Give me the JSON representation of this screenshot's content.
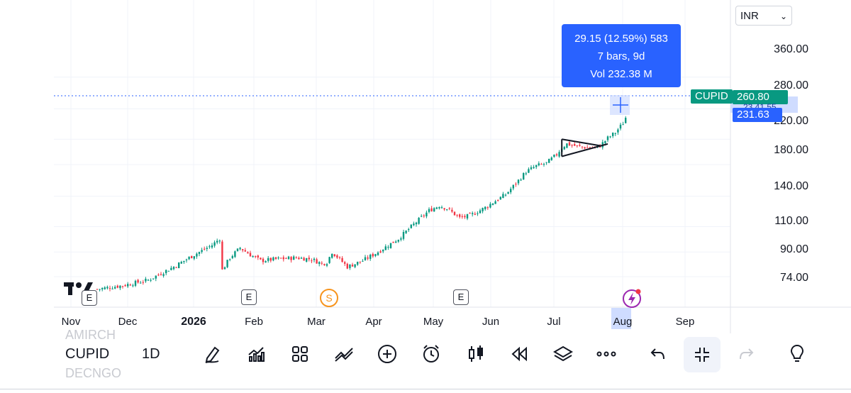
{
  "currency": {
    "value": "INR"
  },
  "y_axis": {
    "labels": [
      "360.00",
      "280.00",
      "220.00",
      "180.00",
      "140.00",
      "110.00",
      "90.00",
      "74.00"
    ]
  },
  "x_axis": {
    "labels": [
      "Nov",
      "Dec",
      "2026",
      "Feb",
      "Mar",
      "Apr",
      "May",
      "Jun",
      "Jul",
      "Aug",
      "Sep"
    ]
  },
  "measure_tooltip": {
    "line1": "29.15 (12.59%) 583",
    "line2": "7 bars, 9d",
    "line3": "Vol 232.38 M"
  },
  "price_tags": {
    "symbol_label": "CUPID",
    "last_price": "260.80",
    "hidden_price": "23.41.55",
    "measure_price": "231.63"
  },
  "events": {
    "earnings": "E",
    "dividend": "S"
  },
  "toolbar": {
    "symbol": "CUPID",
    "interval": "1D",
    "ghost_above": "AMIRCH",
    "ghost_below": "DECNGO",
    "icons": [
      "draw-icon",
      "indicators-icon",
      "layouts-icon",
      "compare-icon",
      "add-icon",
      "alert-icon",
      "chart-type-icon",
      "replay-icon",
      "layers-icon",
      "more-icon",
      "undo-icon",
      "collapse-icon",
      "redo-icon",
      "idea-icon"
    ]
  },
  "colors": {
    "up": "#089981",
    "down": "#f23645",
    "accent": "#2962ff",
    "grid": "#f0f3fa"
  },
  "chart_data": {
    "type": "candlestick",
    "symbol": "CUPID",
    "interval": "1D",
    "y_scale": "log",
    "ylim": [
      64,
      420
    ],
    "last_price": 260.8,
    "x_labels": [
      "Nov",
      "Dec",
      "2026",
      "Feb",
      "Mar",
      "Apr",
      "May",
      "Jun",
      "Jul",
      "Aug",
      "Sep"
    ],
    "y_ticks": [
      360,
      280,
      220,
      180,
      140,
      110,
      90,
      74
    ],
    "close_path": [
      [
        0,
        67
      ],
      [
        10,
        69
      ],
      [
        20,
        72
      ],
      [
        25,
        76
      ],
      [
        30,
        80
      ],
      [
        38,
        88
      ],
      [
        45,
        95
      ],
      [
        48,
        100
      ],
      [
        49,
        78
      ],
      [
        52,
        86
      ],
      [
        56,
        93
      ],
      [
        60,
        88
      ],
      [
        64,
        84
      ],
      [
        70,
        85
      ],
      [
        78,
        86
      ],
      [
        84,
        85
      ],
      [
        88,
        82
      ],
      [
        90,
        83
      ],
      [
        92,
        90
      ],
      [
        95,
        85
      ],
      [
        98,
        80
      ],
      [
        104,
        84
      ],
      [
        110,
        90
      ],
      [
        118,
        100
      ],
      [
        124,
        112
      ],
      [
        130,
        125
      ],
      [
        134,
        130
      ],
      [
        137,
        127
      ],
      [
        142,
        118
      ],
      [
        146,
        120
      ],
      [
        152,
        128
      ],
      [
        156,
        135
      ],
      [
        160,
        142
      ],
      [
        164,
        155
      ],
      [
        168,
        170
      ],
      [
        172,
        178
      ],
      [
        176,
        182
      ],
      [
        180,
        195
      ],
      [
        182,
        206
      ],
      [
        184,
        212
      ],
      [
        188,
        208
      ],
      [
        192,
        206
      ],
      [
        195,
        206
      ],
      [
        197,
        209
      ],
      [
        200,
        222
      ],
      [
        203,
        232
      ],
      [
        206,
        250
      ],
      [
        207,
        260.8
      ]
    ],
    "pattern": "symmetrical triangle",
    "triangle": {
      "upper": [
        [
          182,
          220
        ],
        [
          197,
          209
        ]
      ],
      "lower": [
        [
          182,
          192
        ],
        [
          200,
          212
        ]
      ]
    },
    "measure": {
      "change": 29.15,
      "change_pct": 12.59,
      "ticks": 583,
      "bars": 7,
      "days": 9,
      "volume": "232.38 M"
    }
  }
}
